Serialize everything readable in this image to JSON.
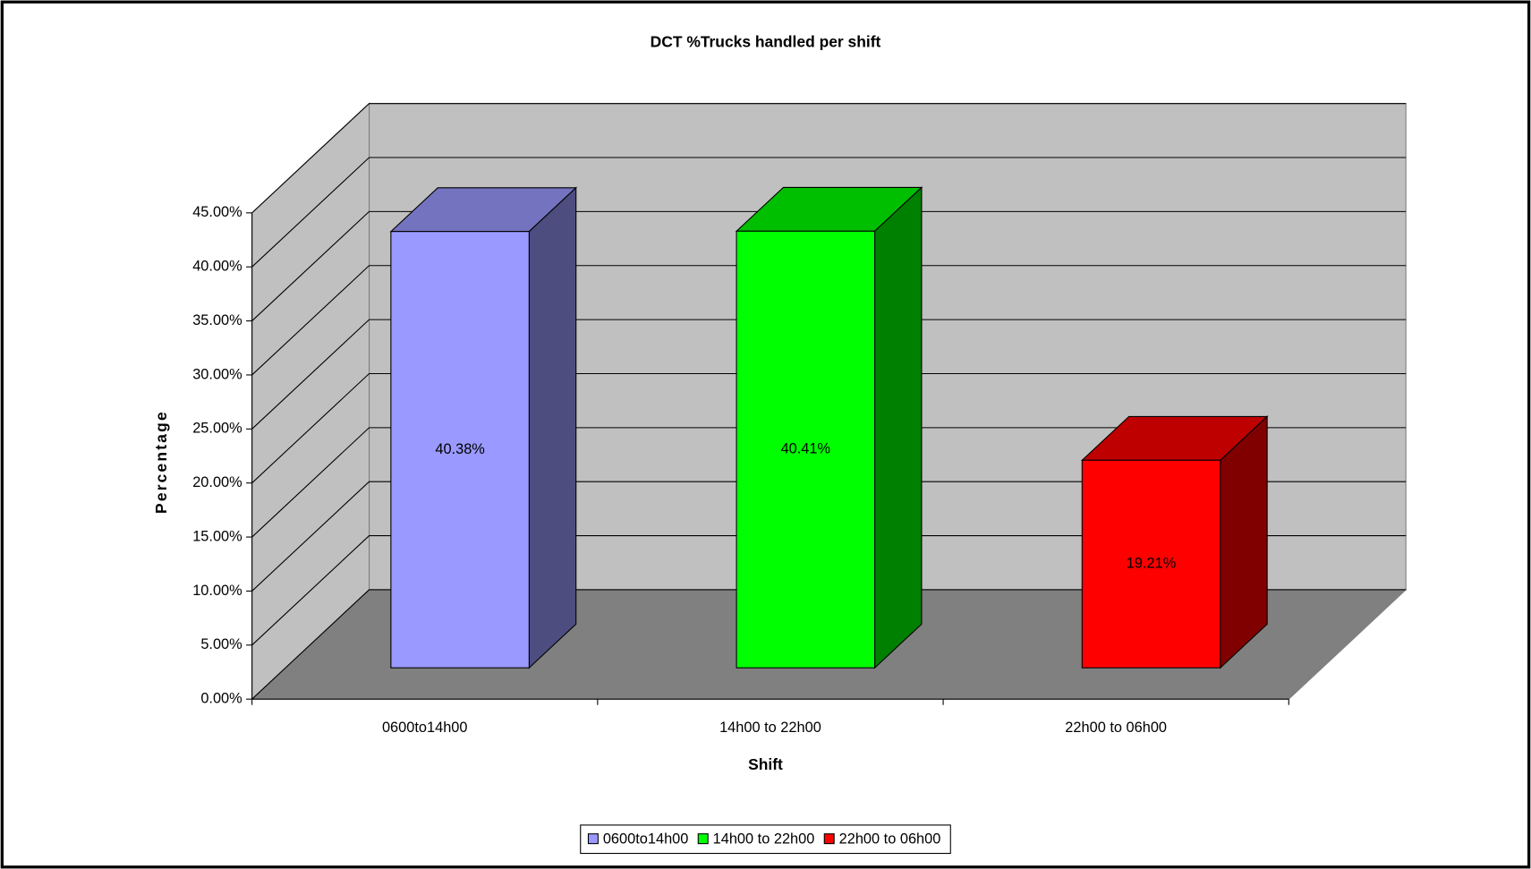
{
  "chart_data": {
    "type": "bar3d",
    "title": "DCT %Trucks handled per shift",
    "x_label": "Shift",
    "y_label": "Percentage",
    "categories": [
      "0600to14h00",
      "14h00 to 22h00",
      "22h00 to 06h00"
    ],
    "values": [
      40.38,
      40.41,
      19.21
    ],
    "value_labels": [
      "40.38%",
      "40.41%",
      "19.21%"
    ],
    "colors": [
      "#9999ff",
      "#00ff00",
      "#ff0000"
    ],
    "ylim": [
      0,
      45
    ],
    "yticks": [
      {
        "value": 0,
        "label": "0.00%"
      },
      {
        "value": 5,
        "label": "5.00%"
      },
      {
        "value": 10,
        "label": "10.00%"
      },
      {
        "value": 15,
        "label": "15.00%"
      },
      {
        "value": 20,
        "label": "20.00%"
      },
      {
        "value": 25,
        "label": "25.00%"
      },
      {
        "value": 30,
        "label": "30.00%"
      },
      {
        "value": 35,
        "label": "35.00%"
      },
      {
        "value": 40,
        "label": "40.00%"
      },
      {
        "value": 45,
        "label": "45.00%"
      }
    ],
    "grid": true,
    "legend": "bottom"
  }
}
